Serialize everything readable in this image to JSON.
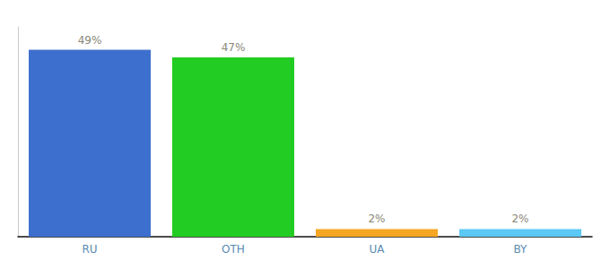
{
  "chart_data": {
    "type": "bar",
    "categories": [
      "RU",
      "OTH",
      "UA",
      "BY"
    ],
    "values": [
      49,
      47,
      2,
      2
    ],
    "value_labels": [
      "49%",
      "47%",
      "2%",
      "2%"
    ],
    "colors": [
      "#3d6fce",
      "#22cc22",
      "#f5a623",
      "#5bc8f5"
    ],
    "ylim": [
      0,
      55
    ],
    "grid": false,
    "data_labels": true,
    "tick_labels": "x"
  }
}
